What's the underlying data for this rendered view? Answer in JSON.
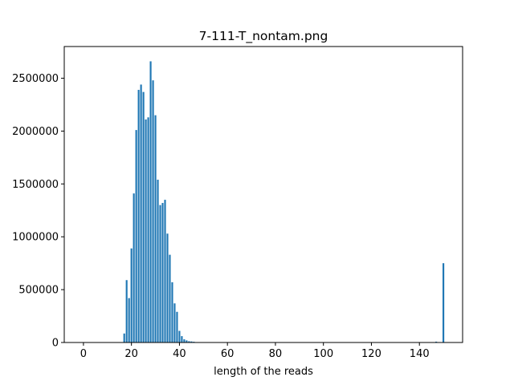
{
  "chart_data": {
    "type": "bar",
    "title": "7-111-T_nontam.png",
    "xlabel": "length of the reads",
    "ylabel": "",
    "xlim": [
      -8,
      158
    ],
    "ylim": [
      0,
      2800000
    ],
    "grid": false,
    "bar_color": "#1f77b4",
    "x_ticks": [
      0,
      20,
      40,
      60,
      80,
      100,
      120,
      140
    ],
    "y_ticks": [
      0,
      500000,
      1000000,
      1500000,
      2000000,
      2500000
    ],
    "x": [
      17,
      18,
      19,
      20,
      21,
      22,
      23,
      24,
      25,
      26,
      27,
      28,
      29,
      30,
      31,
      32,
      33,
      34,
      35,
      36,
      37,
      38,
      39,
      40,
      41,
      42,
      43,
      44,
      45,
      46,
      147,
      150
    ],
    "values": [
      85000,
      590000,
      420000,
      890000,
      1410000,
      2010000,
      2390000,
      2440000,
      2370000,
      2110000,
      2130000,
      2660000,
      2480000,
      2150000,
      1540000,
      1300000,
      1320000,
      1350000,
      1030000,
      830000,
      570000,
      370000,
      290000,
      110000,
      60000,
      30000,
      20000,
      12000,
      10000,
      7000,
      8000,
      750000
    ]
  }
}
